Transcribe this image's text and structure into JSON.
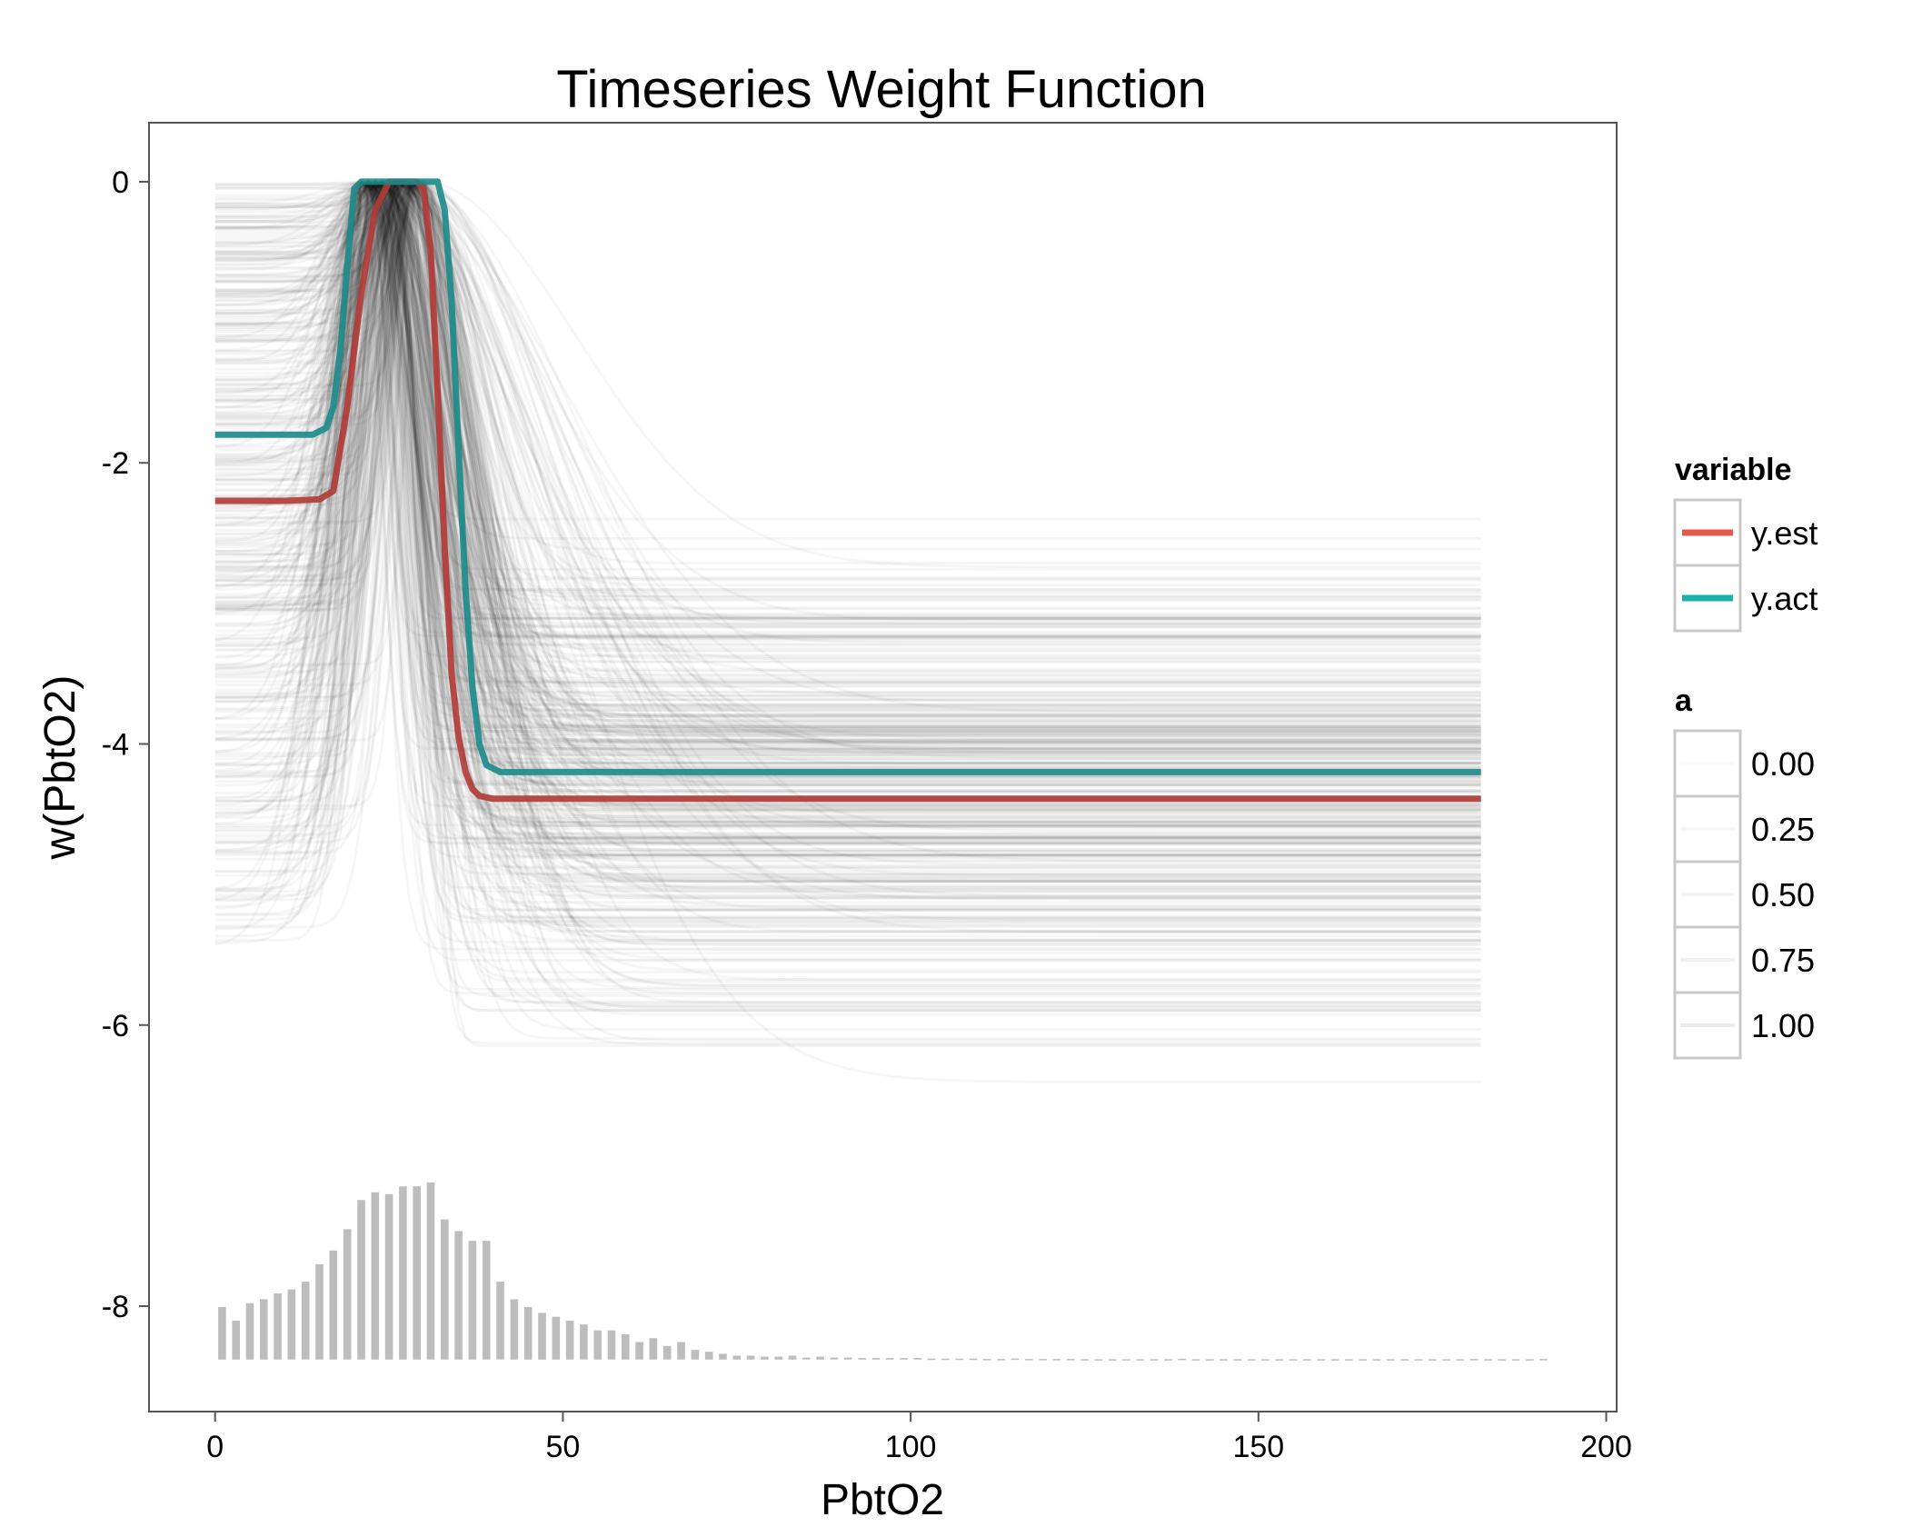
{
  "chart_data": {
    "type": "line",
    "title": "Timeseries Weight Function",
    "xlabel": "PbtO2",
    "ylabel": "w(PbtO2)",
    "xlim": [
      -9.5,
      201.5
    ],
    "ylim": [
      -8.75,
      0.42
    ],
    "xticks": [
      0,
      50,
      100,
      150,
      200
    ],
    "xtick_labels": [
      "0",
      "50",
      "100",
      "150",
      "200"
    ],
    "yticks": [
      0,
      -2,
      -4,
      -6,
      -8
    ],
    "ytick_labels": [
      "0",
      "-2",
      "-4",
      "-6",
      "-8"
    ],
    "grid": false,
    "legend_position": "right",
    "series": [
      {
        "name": "y.est",
        "color": "#b03a35",
        "x": [
          0,
          5,
          10,
          15,
          17,
          19,
          21,
          23,
          25,
          27,
          29,
          30,
          31,
          32,
          33,
          34,
          35,
          36,
          37,
          38,
          40,
          45,
          60,
          80,
          120,
          160,
          182
        ],
        "y": [
          -2.27,
          -2.27,
          -2.27,
          -2.26,
          -2.2,
          -1.6,
          -0.8,
          -0.2,
          0,
          0,
          0,
          -0.05,
          -0.5,
          -1.5,
          -2.6,
          -3.5,
          -3.95,
          -4.2,
          -4.32,
          -4.37,
          -4.39,
          -4.39,
          -4.39,
          -4.39,
          -4.39,
          -4.39,
          -4.39
        ]
      },
      {
        "name": "y.act",
        "color": "#1b8a8a",
        "x": [
          0,
          5,
          10,
          14,
          16,
          17,
          18,
          19,
          20,
          21,
          22,
          23,
          25,
          28,
          31,
          32,
          33,
          34,
          35,
          36,
          37,
          38,
          39,
          41,
          45,
          60,
          80,
          120,
          160,
          182
        ],
        "y": [
          -1.8,
          -1.8,
          -1.8,
          -1.8,
          -1.75,
          -1.6,
          -1.2,
          -0.6,
          -0.05,
          0,
          0,
          0,
          0,
          0,
          0,
          0,
          -0.2,
          -0.85,
          -1.9,
          -2.9,
          -3.6,
          -4.0,
          -4.15,
          -4.2,
          -4.2,
          -4.2,
          -4.2,
          -4.2,
          -4.2,
          -4.2
        ]
      }
    ],
    "background_curves": {
      "count": 420,
      "color": "#000000",
      "opacity": 0.035,
      "peak_x_range": [
        21,
        30
      ],
      "left_plateau_range": [
        -5.5,
        0
      ],
      "right_plateau_range": [
        -7.4,
        -2.4
      ],
      "x_range": [
        0,
        182
      ]
    },
    "histogram": {
      "color": "#bdbdbd",
      "baseline": -8.38,
      "scale_top": -7.12,
      "bin_width": 1.93,
      "x": [
        1,
        3,
        5,
        7,
        9,
        11,
        13,
        15,
        17,
        19,
        21,
        23,
        25,
        27,
        29,
        31,
        33,
        35,
        37,
        39,
        41,
        43,
        45,
        47,
        49,
        51,
        53,
        55,
        57,
        59,
        61,
        63,
        65,
        67,
        69,
        71,
        73,
        75,
        77,
        79,
        81,
        83,
        85,
        87,
        89,
        91,
        93,
        95,
        97,
        99,
        101,
        103,
        105,
        107,
        109,
        111,
        113,
        115,
        117,
        119,
        121,
        123,
        125,
        127,
        129,
        131,
        133,
        135,
        137,
        139,
        141,
        143,
        145,
        147,
        149,
        151,
        153,
        155,
        157,
        159,
        161,
        163,
        165,
        167,
        169,
        171,
        173,
        175,
        177,
        179,
        181,
        183,
        185,
        187,
        189,
        191
      ],
      "counts": [
        27,
        20,
        29,
        31,
        34,
        36,
        40,
        49,
        56,
        67,
        82,
        86,
        85,
        89,
        89,
        91,
        72,
        66,
        61,
        61,
        40,
        31,
        27,
        24,
        22,
        20,
        18,
        15,
        15,
        13,
        9,
        11,
        7,
        9,
        5,
        4,
        3,
        2,
        2,
        1.5,
        1.5,
        2,
        1,
        1.5,
        1,
        1,
        0.8,
        0.8,
        0.8,
        0.8,
        0.8,
        0.5,
        0.5,
        0.5,
        0.5,
        0.3,
        0.3,
        0.5,
        0.3,
        0.3,
        0.3,
        0.3,
        0.2,
        0.2,
        0.2,
        0.2,
        0.2,
        0.2,
        0.2,
        0.4,
        0.2,
        0.2,
        0.2,
        0.2,
        0.2,
        0.2,
        0.2,
        0.2,
        0.2,
        0.2,
        0.2,
        0.2,
        0.2,
        0.2,
        0.2,
        0.2,
        0.2,
        0.2,
        0.2,
        0.2,
        0.3,
        0.2,
        0.2,
        0.2,
        0.2,
        0.3
      ]
    },
    "legend": [
      {
        "title": "variable",
        "entries": [
          {
            "label": "y.est",
            "color": "#e8584f"
          },
          {
            "label": "y.act",
            "color": "#1bb0b0"
          }
        ]
      },
      {
        "title": "a",
        "entries": [
          {
            "label": "0.00",
            "opacity": 0.02
          },
          {
            "label": "0.25",
            "opacity": 0.03
          },
          {
            "label": "0.50",
            "opacity": 0.045
          },
          {
            "label": "0.75",
            "opacity": 0.06
          },
          {
            "label": "1.00",
            "opacity": 0.08
          }
        ]
      }
    ]
  }
}
